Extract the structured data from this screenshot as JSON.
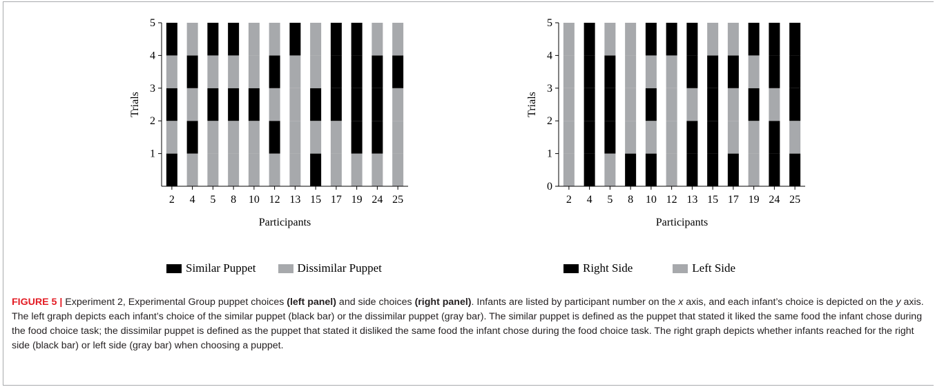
{
  "chart_data": [
    {
      "type": "bar",
      "stacked": true,
      "categories": [
        "2",
        "4",
        "5",
        "8",
        "10",
        "12",
        "13",
        "15",
        "17",
        "19",
        "24",
        "25"
      ],
      "ylabel": "Trials",
      "xlabel": "Participants",
      "ylim": [
        0,
        5
      ],
      "yticks": [
        "1",
        "2",
        "3",
        "4",
        "5"
      ],
      "legend": [
        {
          "label": "Similar Puppet",
          "color": "#000000"
        },
        {
          "label": "Dissimilar Puppet",
          "color": "#a7a9ac"
        }
      ],
      "trial_choices": [
        [
          "black",
          "gray",
          "black",
          "gray",
          "black"
        ],
        [
          "gray",
          "black",
          "gray",
          "black",
          "gray"
        ],
        [
          "gray",
          "gray",
          "black",
          "gray",
          "black"
        ],
        [
          "gray",
          "gray",
          "black",
          "gray",
          "black"
        ],
        [
          "gray",
          "gray",
          "black",
          "gray",
          "gray"
        ],
        [
          "gray",
          "black",
          "gray",
          "black",
          "gray"
        ],
        [
          "gray",
          "gray",
          "gray",
          "gray",
          "black"
        ],
        [
          "black",
          "gray",
          "black",
          "gray",
          "gray"
        ],
        [
          "gray",
          "gray",
          "black",
          "black",
          "black"
        ],
        [
          "gray",
          "black",
          "black",
          "black",
          "black"
        ],
        [
          "gray",
          "black",
          "black",
          "black",
          "gray"
        ],
        [
          "gray",
          "gray",
          "gray",
          "black",
          "gray"
        ]
      ]
    },
    {
      "type": "bar",
      "stacked": true,
      "categories": [
        "2",
        "4",
        "5",
        "8",
        "10",
        "12",
        "13",
        "15",
        "17",
        "19",
        "24",
        "25"
      ],
      "ylabel": "Trials",
      "xlabel": "Participants",
      "ylim": [
        0,
        5
      ],
      "yticks": [
        "0",
        "1",
        "2",
        "3",
        "4",
        "5"
      ],
      "legend": [
        {
          "label": "Right Side",
          "color": "#000000"
        },
        {
          "label": "Left Side",
          "color": "#a7a9ac"
        }
      ],
      "trial_choices": [
        [
          "gray",
          "gray",
          "gray",
          "gray",
          "gray"
        ],
        [
          "black",
          "black",
          "black",
          "black",
          "black"
        ],
        [
          "gray",
          "black",
          "black",
          "black",
          "gray"
        ],
        [
          "black",
          "gray",
          "gray",
          "gray",
          "gray"
        ],
        [
          "black",
          "gray",
          "black",
          "gray",
          "black"
        ],
        [
          "gray",
          "gray",
          "gray",
          "gray",
          "black"
        ],
        [
          "black",
          "black",
          "gray",
          "black",
          "black"
        ],
        [
          "black",
          "black",
          "black",
          "black",
          "gray"
        ],
        [
          "black",
          "gray",
          "gray",
          "black",
          "gray"
        ],
        [
          "gray",
          "gray",
          "black",
          "gray",
          "black"
        ],
        [
          "black",
          "black",
          "gray",
          "black",
          "black"
        ],
        [
          "black",
          "gray",
          "black",
          "black",
          "black"
        ]
      ]
    }
  ],
  "colors": {
    "black": "#000000",
    "gray": "#a7a9ac",
    "fig_label": "#e31b23",
    "caption_text": "#231f20"
  },
  "caption": {
    "fig_label": "FIGURE 5 |",
    "part1": " Experiment 2, Experimental Group puppet choices ",
    "bold1": "(left panel)",
    "part2": " and side choices ",
    "bold2": "(right panel)",
    "part3": ". Infants are listed by participant number on the ",
    "x_italic": "x",
    "part4": " axis, and each infant’s choice is depicted on the ",
    "y_italic": "y",
    "part5": " axis. The left graph depicts each infant’s choice of the similar puppet (black bar) or the dissimilar puppet (gray bar). The similar puppet is defined as the puppet that stated it liked the same food the infant chose during the food choice task; the dissimilar puppet is defined as the puppet that stated it disliked the same food the infant chose during the food choice task. The right graph depicts whether infants reached for the right side (black bar) or left side (gray bar) when choosing a puppet."
  }
}
